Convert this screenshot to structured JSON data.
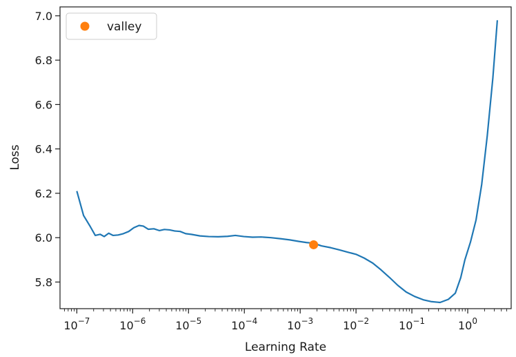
{
  "chart_data": {
    "type": "line",
    "title": "",
    "xlabel": "Learning Rate",
    "ylabel": "Loss",
    "xscale": "log",
    "xlim": [
      5e-08,
      6
    ],
    "ylim": [
      5.68,
      7.04
    ],
    "grid": false,
    "legend": {
      "placement": "top-left"
    },
    "colors": {
      "line": "#1f77b4",
      "valley": "#ff7f0e",
      "axis": "#1a1a1a"
    },
    "x_ticks": [
      {
        "value": 1e-07,
        "base": "10",
        "exp": "−7"
      },
      {
        "value": 1e-06,
        "base": "10",
        "exp": "−6"
      },
      {
        "value": 1e-05,
        "base": "10",
        "exp": "−5"
      },
      {
        "value": 0.0001,
        "base": "10",
        "exp": "−4"
      },
      {
        "value": 0.001,
        "base": "10",
        "exp": "−3"
      },
      {
        "value": 0.01,
        "base": "10",
        "exp": "−2"
      },
      {
        "value": 0.1,
        "base": "10",
        "exp": "−1"
      },
      {
        "value": 1,
        "base": "10",
        "exp": "0"
      }
    ],
    "y_ticks": [
      {
        "value": 5.8,
        "label": "5.8"
      },
      {
        "value": 6.0,
        "label": "6.0"
      },
      {
        "value": 6.2,
        "label": "6.2"
      },
      {
        "value": 6.4,
        "label": "6.4"
      },
      {
        "value": 6.6,
        "label": "6.6"
      },
      {
        "value": 6.8,
        "label": "6.8"
      },
      {
        "value": 7.0,
        "label": "7.0"
      }
    ],
    "series": [
      {
        "points": [
          [
            1e-07,
            6.21
          ],
          [
            1.32e-07,
            6.1
          ],
          [
            1.74e-07,
            6.05
          ],
          [
            2.14e-07,
            6.01
          ],
          [
            2.63e-07,
            6.015
          ],
          [
            3.09e-07,
            6.005
          ],
          [
            3.72e-07,
            6.02
          ],
          [
            4.47e-07,
            6.01
          ],
          [
            5.5e-07,
            6.012
          ],
          [
            6.8e-07,
            6.018
          ],
          [
            8.5e-07,
            6.028
          ],
          [
            1.05e-06,
            6.045
          ],
          [
            1.3e-06,
            6.055
          ],
          [
            1.55e-06,
            6.052
          ],
          [
            1.9e-06,
            6.038
          ],
          [
            2.4e-06,
            6.04
          ],
          [
            3e-06,
            6.032
          ],
          [
            3.7e-06,
            6.037
          ],
          [
            4.6e-06,
            6.035
          ],
          [
            5.7e-06,
            6.03
          ],
          [
            7.1e-06,
            6.028
          ],
          [
            8.9e-06,
            6.018
          ],
          [
            1.12e-05,
            6.015
          ],
          [
            1.6e-05,
            6.008
          ],
          [
            2.3e-05,
            6.005
          ],
          [
            3.4e-05,
            6.004
          ],
          [
            5e-05,
            6.006
          ],
          [
            6.9e-05,
            6.01
          ],
          [
            9.8e-05,
            6.005
          ],
          [
            0.00014,
            6.002
          ],
          [
            0.0002,
            6.003
          ],
          [
            0.0003,
            6.0
          ],
          [
            0.00045,
            5.995
          ],
          [
            0.00065,
            5.99
          ],
          [
            0.00095,
            5.983
          ],
          [
            0.0013,
            5.978
          ],
          [
            0.00174,
            5.975
          ],
          [
            0.0024,
            5.963
          ],
          [
            0.0035,
            5.955
          ],
          [
            0.005,
            5.945
          ],
          [
            0.007,
            5.935
          ],
          [
            0.01,
            5.925
          ],
          [
            0.014,
            5.908
          ],
          [
            0.02,
            5.885
          ],
          [
            0.028,
            5.855
          ],
          [
            0.04,
            5.82
          ],
          [
            0.056,
            5.785
          ],
          [
            0.079,
            5.755
          ],
          [
            0.112,
            5.735
          ],
          [
            0.16,
            5.72
          ],
          [
            0.22,
            5.712
          ],
          [
            0.32,
            5.708
          ],
          [
            0.45,
            5.722
          ],
          [
            0.6,
            5.75
          ],
          [
            0.75,
            5.82
          ],
          [
            0.89,
            5.9
          ],
          [
            1.12,
            5.98
          ],
          [
            1.41,
            6.08
          ],
          [
            1.78,
            6.24
          ],
          [
            2.24,
            6.46
          ],
          [
            2.82,
            6.72
          ],
          [
            3.39,
            6.98
          ]
        ]
      }
    ],
    "annotations": [
      {
        "label": "valley",
        "x": 0.00174,
        "y": 5.968
      }
    ]
  }
}
